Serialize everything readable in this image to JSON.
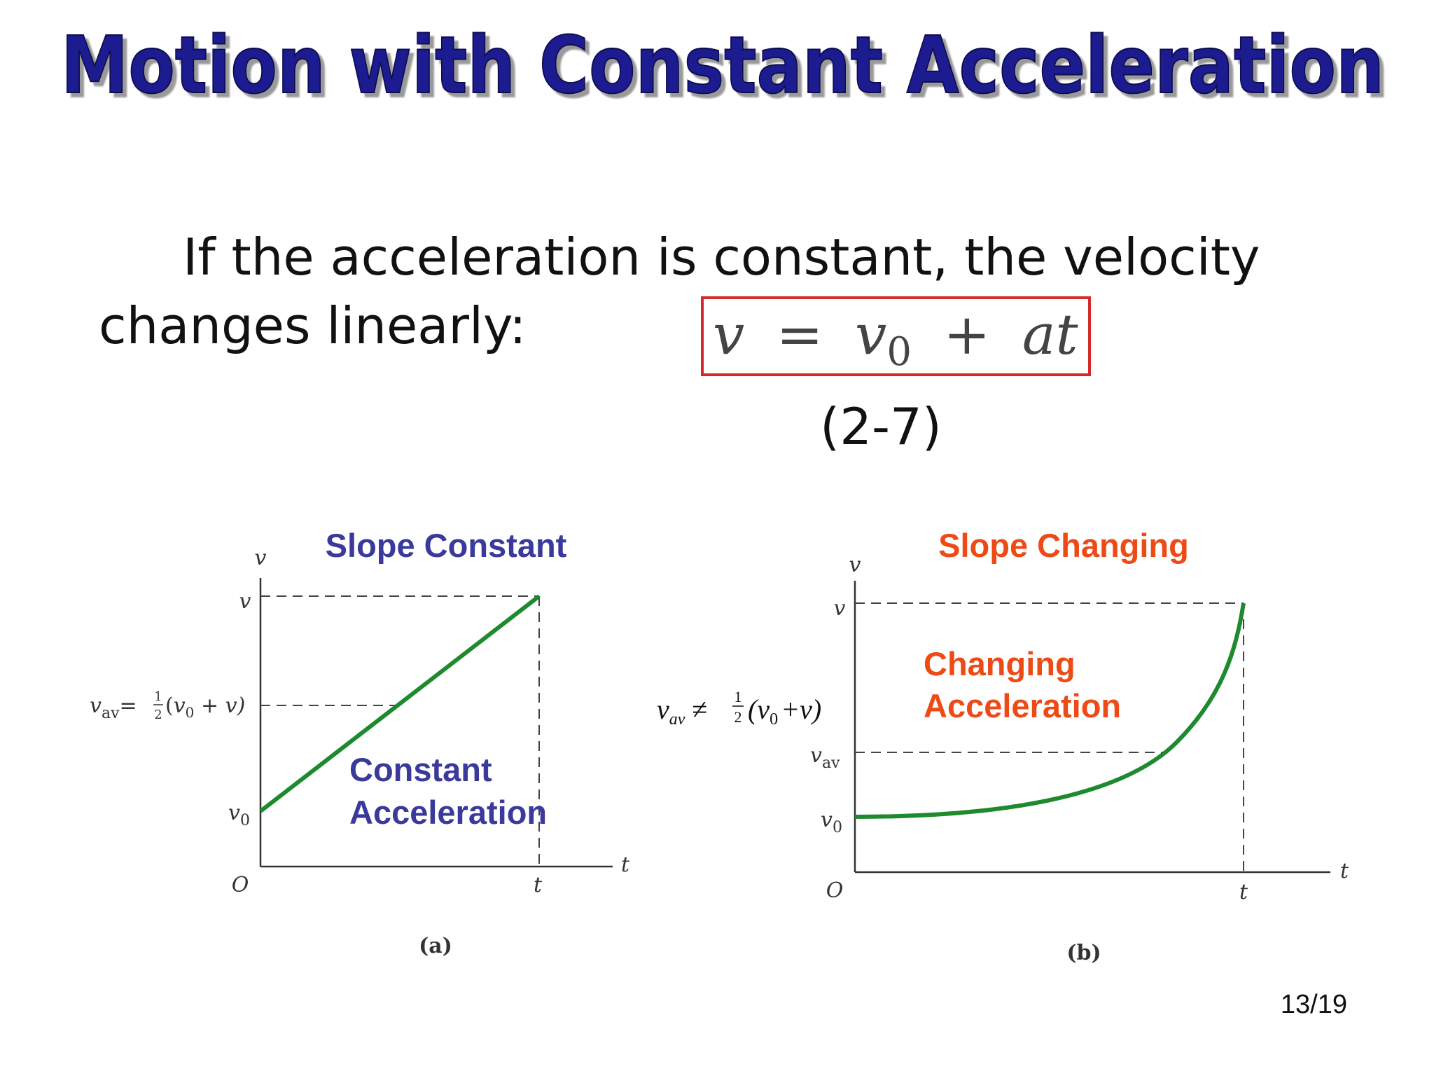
{
  "title": "Motion with Constant Acceleration",
  "body": {
    "line1": "If the acceleration is constant, the velocity",
    "line2": "changes linearly:"
  },
  "equation": {
    "lhs": "v",
    "eq": "=",
    "v": "v",
    "sub": "0",
    "plus": "+",
    "at": "at",
    "number": "(2-7)"
  },
  "panel_a": {
    "heading": "Slope Constant",
    "note1": "Constant",
    "note2": "Acceleration",
    "y_axis": "v",
    "x_axis": "t",
    "origin": "O",
    "v": "v",
    "v0": "v",
    "v0_sub": "0",
    "t": "t",
    "vav": {
      "v": "v",
      "sub": "av",
      "eq": "=",
      "num": "1",
      "den": "2",
      "open": "(",
      "v0": "v",
      "v0_sub": "0",
      "rest": " + v)"
    },
    "caption": "(a)"
  },
  "panel_b": {
    "heading": "Slope Changing",
    "note1": "Changing",
    "note2": "Acceleration",
    "y_axis": "v",
    "x_axis": "t",
    "origin": "O",
    "v": "v",
    "vav": "v",
    "vav_sub": "av",
    "v0": "v",
    "v0_sub": "0",
    "t": "t",
    "formula": {
      "v": "v",
      "sub": "av",
      "neq": "≠",
      "num": "1",
      "den": "2",
      "open": "(v",
      "v0_sub": "0",
      "rest": "+v)"
    },
    "caption": "(b)"
  },
  "page_number": "13/19"
}
